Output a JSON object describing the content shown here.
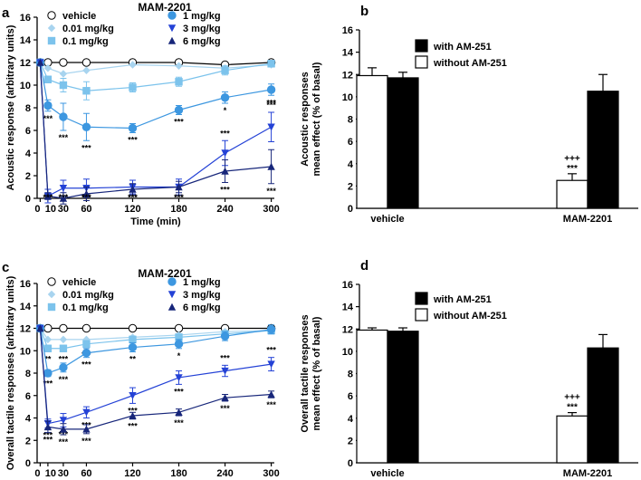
{
  "colors": {
    "vehicle": "#ffffff",
    "dose_001": "#a8d4ef",
    "dose_01": "#7cc3ec",
    "dose_1": "#3d97e0",
    "dose_3": "#2442d6",
    "dose_6": "#17267a",
    "with_am251": "#000000",
    "without_am251": "#ffffff"
  },
  "chart_data": [
    {
      "panel": "a",
      "type": "line",
      "title": "MAM-2201",
      "xlabel": "Time (min)",
      "ylabel": "Acoustic response (arbitrary units)",
      "ylim": [
        0,
        16
      ],
      "yticks": [
        "0",
        "2",
        "4",
        "6",
        "8",
        "10",
        "12",
        "14",
        "16"
      ],
      "x": [
        0,
        10,
        30,
        60,
        120,
        180,
        240,
        300
      ],
      "xticks": [
        "0",
        "10",
        "30",
        "60",
        "120",
        "180",
        "240",
        "300"
      ],
      "series": [
        {
          "name": "vehicle",
          "marker": "circle-open",
          "values": [
            12,
            12,
            12,
            12,
            12,
            12,
            11.8,
            12
          ],
          "errors": [
            0,
            0,
            0,
            0,
            0,
            0,
            0,
            0
          ],
          "sig": [
            "",
            "",
            "",
            "",
            "",
            "",
            "",
            ""
          ]
        },
        {
          "name": "0.01 mg/kg",
          "marker": "diamond",
          "values": [
            12,
            11.5,
            11,
            11.3,
            11.8,
            11.7,
            11.5,
            11.8
          ],
          "errors": [
            0,
            0,
            0,
            0,
            0,
            0,
            0,
            0
          ],
          "sig": [
            "",
            "",
            "",
            "",
            "",
            "",
            "",
            ""
          ]
        },
        {
          "name": "0.1 mg/kg",
          "marker": "square",
          "values": [
            12,
            10.5,
            10,
            9.5,
            9.8,
            10.3,
            11.3,
            11.9
          ],
          "errors": [
            0,
            0.3,
            0.6,
            0.8,
            0.4,
            0.4,
            0.4,
            0.3
          ],
          "sig": [
            "",
            "",
            "",
            "",
            "",
            "",
            "",
            ""
          ]
        },
        {
          "name": "1 mg/kg",
          "marker": "circle",
          "values": [
            12,
            8.2,
            7.2,
            6.3,
            6.2,
            7.8,
            8.9,
            9.6
          ],
          "errors": [
            0,
            0.5,
            1.2,
            1.2,
            0.4,
            0.4,
            0.5,
            0.5
          ],
          "sig": [
            "",
            "***",
            "***",
            "***",
            "***",
            "***",
            "*",
            "***"
          ]
        },
        {
          "name": "3 mg/kg",
          "marker": "triangle-down",
          "values": [
            12,
            0.2,
            0.9,
            0.9,
            1,
            1,
            4,
            6.3
          ],
          "errors": [
            0,
            0.6,
            0.7,
            0.8,
            0.6,
            0.7,
            1.1,
            1.3
          ],
          "sig": [
            "",
            "***",
            "***",
            "***",
            "***",
            "***",
            "***",
            "***"
          ]
        },
        {
          "name": "6 mg/kg",
          "marker": "triangle-up",
          "values": [
            12,
            0.2,
            0,
            0.4,
            0.8,
            1,
            2.4,
            2.8
          ],
          "errors": [
            0,
            0.3,
            0.5,
            0.6,
            0.5,
            0.5,
            1,
            1.5
          ],
          "sig": [
            "",
            "***",
            "***",
            "***",
            "***",
            "***",
            "***",
            "***"
          ]
        }
      ],
      "legend": [
        "vehicle",
        "0.01 mg/kg",
        "0.1 mg/kg",
        "1 mg/kg",
        "3 mg/kg",
        "6 mg/kg"
      ]
    },
    {
      "panel": "b",
      "type": "bar",
      "title": "",
      "xlabel": "",
      "ylabel": "Acoustic responses mean effect (% of basal)",
      "ylim": [
        0,
        16
      ],
      "yticks": [
        "0",
        "2",
        "4",
        "6",
        "8",
        "10",
        "12",
        "14",
        "16"
      ],
      "categories": [
        "vehicle",
        "MAM-2201"
      ],
      "series": [
        {
          "name": "without AM-251",
          "values": [
            11.9,
            2.5
          ],
          "errors": [
            0.7,
            0.6
          ]
        },
        {
          "name": "with AM-251",
          "values": [
            11.7,
            10.5
          ],
          "errors": [
            0.5,
            1.5
          ]
        }
      ],
      "legend": [
        "with AM-251",
        "without AM-251"
      ],
      "annotations": {
        "sig_top": "+++",
        "sig_bottom": "***"
      }
    },
    {
      "panel": "c",
      "type": "line",
      "title": "MAM-2201",
      "xlabel": "Time (min)",
      "ylabel": "Overall tactile responses (arbitrary units)",
      "ylim": [
        0,
        16
      ],
      "yticks": [
        "0",
        "2",
        "4",
        "6",
        "8",
        "10",
        "12",
        "14",
        "16"
      ],
      "x": [
        0,
        10,
        30,
        60,
        120,
        180,
        240,
        300
      ],
      "xticks": [
        "0",
        "10",
        "30",
        "60",
        "120",
        "180",
        "240",
        "300"
      ],
      "series": [
        {
          "name": "vehicle",
          "marker": "circle-open",
          "values": [
            12,
            12,
            12,
            12,
            12,
            12,
            12,
            12
          ],
          "errors": [
            0,
            0,
            0,
            0,
            0,
            0,
            0,
            0
          ],
          "sig": [
            "",
            "",
            "",
            "",
            "",
            "",
            "",
            ""
          ]
        },
        {
          "name": "0.01 mg/kg",
          "marker": "diamond",
          "values": [
            12,
            11,
            11,
            11,
            11.2,
            11.4,
            11.7,
            11.8
          ],
          "errors": [
            0,
            0,
            0,
            0,
            0,
            0,
            0,
            0
          ],
          "sig": [
            "",
            "",
            "",
            "",
            "",
            "",
            "",
            ""
          ]
        },
        {
          "name": "0.1 mg/kg",
          "marker": "square",
          "values": [
            12,
            10.2,
            10.2,
            10.6,
            11,
            11.2,
            11.5,
            11.8
          ],
          "errors": [
            0,
            0.3,
            0.3,
            0.3,
            0.3,
            0.3,
            0.3,
            0.3
          ],
          "sig": [
            "",
            "**",
            "***",
            "***",
            "",
            "",
            "",
            ""
          ]
        },
        {
          "name": "1 mg/kg",
          "marker": "circle",
          "values": [
            12,
            8,
            8.5,
            9.8,
            10.3,
            10.6,
            11.3,
            11.9
          ],
          "errors": [
            0,
            0.3,
            0.4,
            0.4,
            0.4,
            0.4,
            0.4,
            0.4
          ],
          "sig": [
            "",
            "***",
            "***",
            "***",
            "**",
            "*",
            "",
            ""
          ]
        },
        {
          "name": "3 mg/kg",
          "marker": "triangle-down",
          "values": [
            12,
            3.5,
            3.8,
            4.5,
            6,
            7.6,
            8.2,
            8.8
          ],
          "errors": [
            0,
            0.4,
            0.6,
            0.5,
            0.7,
            0.6,
            0.5,
            0.6
          ],
          "sig": [
            "",
            "***",
            "***",
            "***",
            "***",
            "***",
            "***",
            "***"
          ]
        },
        {
          "name": "6 mg/kg",
          "marker": "triangle-up",
          "values": [
            12,
            3.2,
            3,
            3,
            4.2,
            4.5,
            5.8,
            6.1
          ],
          "errors": [
            0,
            0.5,
            0.5,
            0.4,
            0.3,
            0.3,
            0.3,
            0.3
          ],
          "sig": [
            "",
            "***",
            "***",
            "***",
            "***",
            "***",
            "***",
            "***"
          ]
        }
      ],
      "legend": [
        "vehicle",
        "0.01 mg/kg",
        "0.1 mg/kg",
        "1 mg/kg",
        "3 mg/kg",
        "6 mg/kg"
      ]
    },
    {
      "panel": "d",
      "type": "bar",
      "title": "",
      "xlabel": "",
      "ylabel": "Overall tactile responses mean effect (% of basal)",
      "ylim": [
        0,
        16
      ],
      "yticks": [
        "0",
        "2",
        "4",
        "6",
        "8",
        "10",
        "12",
        "14",
        "16"
      ],
      "categories": [
        "vehicle",
        "MAM-2201"
      ],
      "series": [
        {
          "name": "without AM-251",
          "values": [
            11.9,
            4.2
          ],
          "errors": [
            0.2,
            0.3
          ]
        },
        {
          "name": "with AM-251",
          "values": [
            11.8,
            10.3
          ],
          "errors": [
            0.3,
            1.2
          ]
        }
      ],
      "legend": [
        "with AM-251",
        "without AM-251"
      ],
      "annotations": {
        "sig_top": "+++",
        "sig_bottom": "***"
      }
    }
  ]
}
